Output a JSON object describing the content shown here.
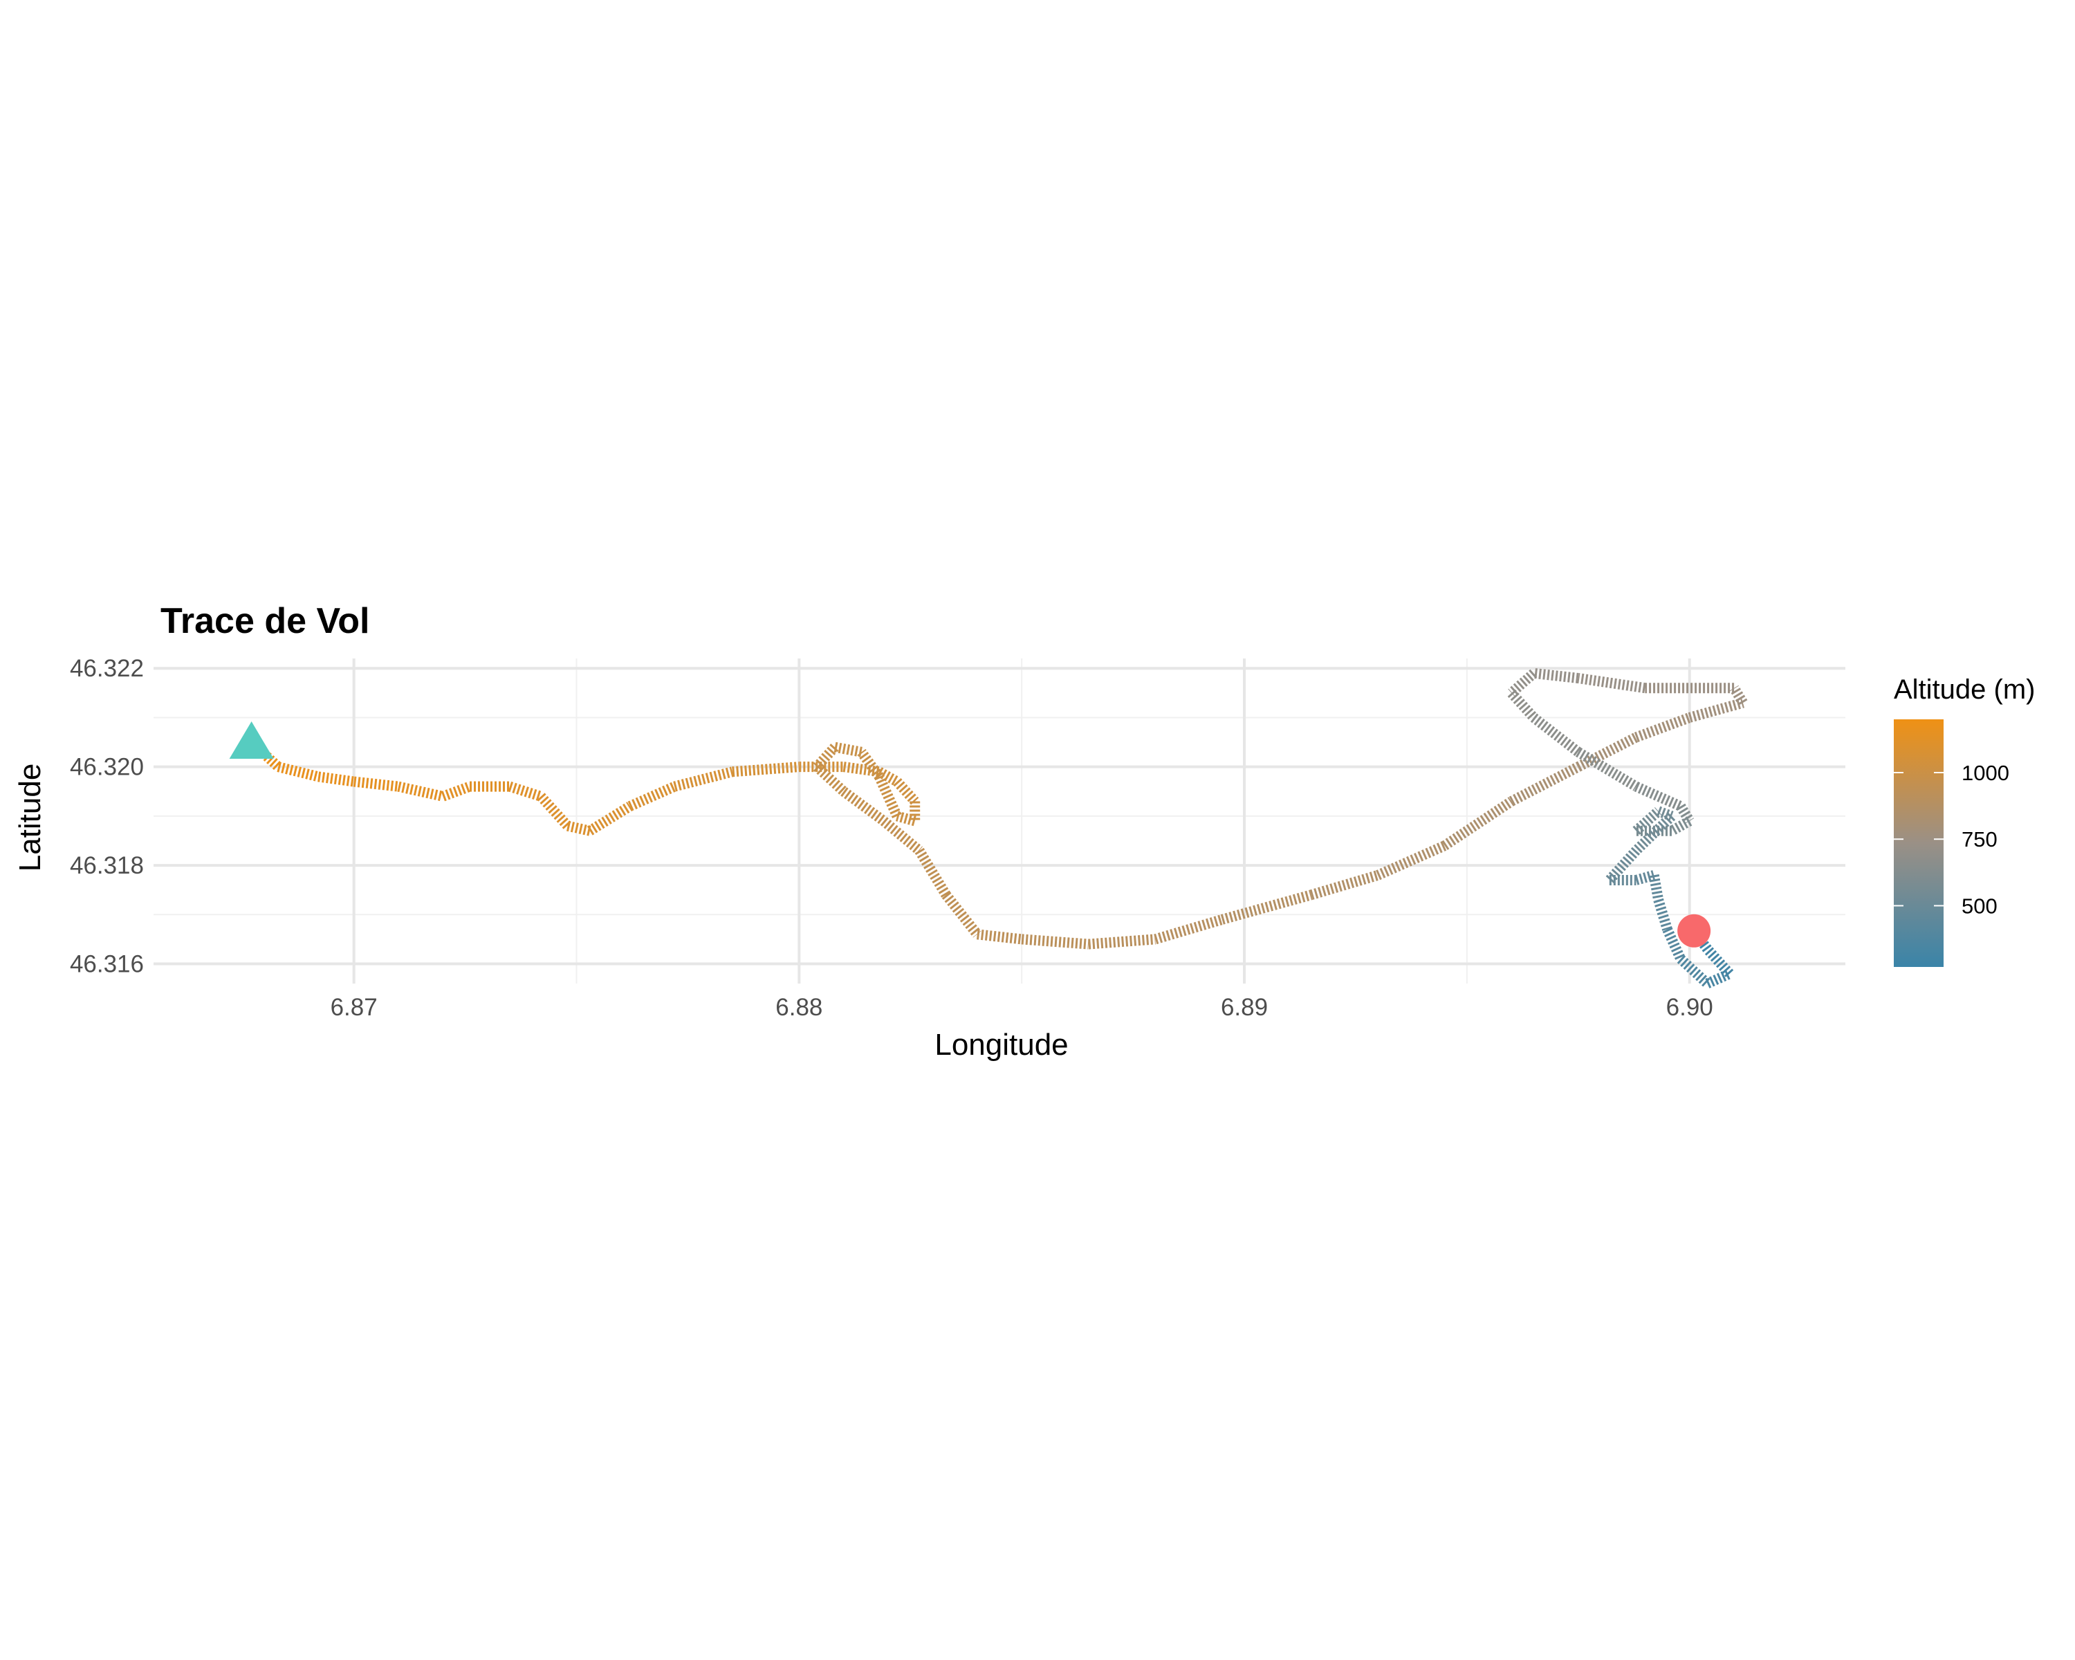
{
  "chart_data": {
    "type": "line",
    "title": "Trace de Vol",
    "xlabel": "Longitude",
    "ylabel": "Latitude",
    "xlim": [
      6.8655,
      6.9035
    ],
    "ylim": [
      46.3156,
      46.3222
    ],
    "x_ticks": [
      6.87,
      6.88,
      6.89,
      6.9
    ],
    "x_tick_labels": [
      "6.87",
      "6.88",
      "6.89",
      "6.90"
    ],
    "y_ticks": [
      46.316,
      46.318,
      46.32,
      46.322
    ],
    "y_tick_labels": [
      "46.316",
      "46.318",
      "46.320",
      "46.322"
    ],
    "grid": true,
    "legend": {
      "title": "Altitude (m)",
      "placement": "right",
      "range": [
        270,
        1200
      ],
      "ticks": [
        500,
        750,
        1000
      ],
      "tick_labels": [
        "500",
        "750",
        "1000"
      ],
      "color_low": "#3a84a8",
      "color_mid": "#9a9086",
      "color_high": "#ef9115"
    },
    "start_marker": {
      "shape": "triangle",
      "lon": 6.8677,
      "lat": 46.3205,
      "color": "#56ccc0"
    },
    "end_marker": {
      "shape": "circle",
      "lon": 6.9001,
      "lat": 46.31667,
      "color": "#f8696b"
    },
    "series": [
      {
        "points": [
          [
            6.8677,
            46.3205,
            1180
          ],
          [
            6.8683,
            46.32,
            1170
          ],
          [
            6.8692,
            46.3198,
            1160
          ],
          [
            6.87,
            46.3197,
            1150
          ],
          [
            6.871,
            46.3196,
            1140
          ],
          [
            6.872,
            46.3194,
            1130
          ],
          [
            6.8726,
            46.3196,
            1125
          ],
          [
            6.8735,
            46.3196,
            1115
          ],
          [
            6.8742,
            46.3194,
            1105
          ],
          [
            6.8748,
            46.3188,
            1095
          ],
          [
            6.8753,
            46.3187,
            1090
          ],
          [
            6.8762,
            46.3192,
            1080
          ],
          [
            6.8772,
            46.3196,
            1070
          ],
          [
            6.8785,
            46.3199,
            1060
          ],
          [
            6.88,
            46.32,
            1050
          ],
          [
            6.881,
            46.32,
            1040
          ],
          [
            6.8818,
            46.3199,
            1035
          ],
          [
            6.8822,
            46.3197,
            1030
          ],
          [
            6.8826,
            46.3193,
            1020
          ],
          [
            6.8826,
            46.3189,
            1012
          ],
          [
            6.8822,
            46.319,
            1005
          ],
          [
            6.8818,
            46.3198,
            998
          ],
          [
            6.8814,
            46.3203,
            990
          ],
          [
            6.8808,
            46.3204,
            983
          ],
          [
            6.8804,
            46.32,
            975
          ],
          [
            6.881,
            46.3195,
            968
          ],
          [
            6.8819,
            46.3189,
            960
          ],
          [
            6.8827,
            46.3183,
            950
          ],
          [
            6.8833,
            46.3174,
            940
          ],
          [
            6.884,
            46.3166,
            930
          ],
          [
            6.885,
            46.3165,
            920
          ],
          [
            6.8865,
            46.3164,
            910
          ],
          [
            6.888,
            46.3165,
            900
          ],
          [
            6.8895,
            46.3169,
            885
          ],
          [
            6.8915,
            46.3174,
            870
          ],
          [
            6.893,
            46.3178,
            855
          ],
          [
            6.8945,
            46.3184,
            840
          ],
          [
            6.896,
            46.3193,
            825
          ],
          [
            6.8975,
            46.32,
            810
          ],
          [
            6.8988,
            46.3206,
            795
          ],
          [
            6.9,
            46.321,
            780
          ],
          [
            6.9012,
            46.3213,
            765
          ],
          [
            6.901,
            46.3216,
            750
          ],
          [
            6.899,
            46.3216,
            735
          ],
          [
            6.8975,
            46.3218,
            720
          ],
          [
            6.8965,
            46.3219,
            705
          ],
          [
            6.896,
            46.3215,
            690
          ],
          [
            6.8965,
            46.321,
            675
          ],
          [
            6.8975,
            46.3203,
            660
          ],
          [
            6.8988,
            46.3196,
            645
          ],
          [
            6.8998,
            46.3192,
            630
          ],
          [
            6.9,
            46.3189,
            610
          ],
          [
            6.8996,
            46.3187,
            590
          ],
          [
            6.8988,
            46.3187,
            570
          ],
          [
            6.8993,
            46.3191,
            555
          ],
          [
            6.8996,
            46.319,
            540
          ],
          [
            6.8988,
            46.3183,
            520
          ],
          [
            6.8982,
            46.3177,
            500
          ],
          [
            6.8988,
            46.3177,
            485
          ],
          [
            6.8992,
            46.3178,
            470
          ],
          [
            6.8993,
            46.3173,
            450
          ],
          [
            6.8995,
            46.3167,
            420
          ],
          [
            6.8998,
            46.3161,
            390
          ],
          [
            6.9004,
            46.3156,
            360
          ],
          [
            6.9009,
            46.3158,
            330
          ],
          [
            6.9004,
            46.3163,
            300
          ],
          [
            6.9001,
            46.31667,
            280
          ]
        ]
      }
    ]
  }
}
